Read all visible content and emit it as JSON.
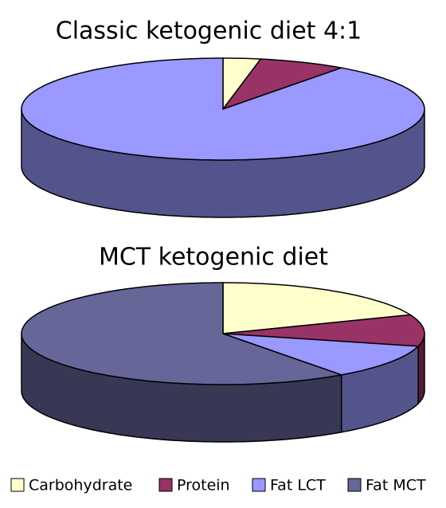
{
  "chart_data": [
    {
      "type": "pie",
      "title": "Classic ketogenic diet 4:1",
      "categories": [
        "Carbohydrate",
        "Protein",
        "Fat LCT"
      ],
      "values": [
        3,
        7,
        90
      ],
      "colors": [
        "#ffffcc",
        "#993366",
        "#9999ff"
      ]
    },
    {
      "type": "pie",
      "title": "MCT ketogenic diet",
      "categories": [
        "Carbohydrate",
        "Protein",
        "Fat LCT",
        "Fat MCT"
      ],
      "values": [
        19,
        10,
        11,
        60
      ],
      "colors": [
        "#ffffcc",
        "#993366",
        "#9999ff",
        "#666699"
      ]
    }
  ]
}
